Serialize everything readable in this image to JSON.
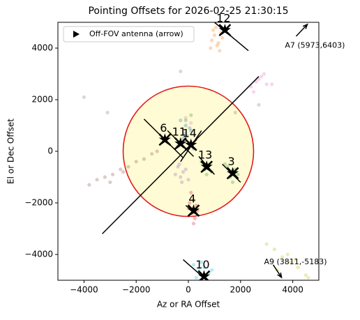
{
  "chart_data": {
    "type": "scatter",
    "title": "Pointing Offsets for 2026-02-25 21:30:15",
    "x_label": "Az or RA Offset",
    "y_label": "El or Dec Offset",
    "xlim": [
      -5000,
      5000
    ],
    "ylim": [
      -5000,
      5000
    ],
    "xticks": [
      {
        "value": -4000,
        "label": "−4000"
      },
      {
        "value": -2000,
        "label": "−2000"
      },
      0,
      2000,
      4000
    ],
    "yticks": [
      {
        "value": -4000,
        "label": "−4000"
      },
      {
        "value": -2000,
        "label": "−2000"
      },
      0,
      2000,
      4000
    ],
    "circle": {
      "center_x": 0,
      "center_y": 0,
      "radius": 2500,
      "fill": "#fffbd4",
      "edge": "#e31a1c"
    },
    "reference_line": {
      "x": [
        -3300,
        2700
      ],
      "y": [
        -3200,
        2900
      ]
    },
    "series": [
      {
        "color": "#ff7f0e",
        "x": [
          900,
          1000,
          1100,
          1200,
          950,
          1300,
          1050,
          1150,
          850,
          1250
        ],
        "y": [
          4300,
          4500,
          4100,
          3900,
          4700,
          4400,
          4800,
          4200,
          4000,
          4600
        ]
      },
      {
        "color": "#e377c2",
        "x": [
          2400,
          2600,
          2800,
          3000,
          2700,
          3200,
          2900,
          -100,
          100,
          2500
        ],
        "y": [
          2500,
          2700,
          2900,
          2600,
          2800,
          2600,
          3000,
          1300,
          1100,
          2300
        ]
      },
      {
        "color": "#8c564b",
        "x": [
          -3800,
          -3500,
          -3200,
          -2900,
          -2600,
          -2300,
          -2000,
          -1700,
          -1400,
          -1200,
          -3000,
          -2500
        ],
        "y": [
          -1300,
          -1100,
          -1000,
          -900,
          -700,
          -600,
          -400,
          -300,
          -100,
          0,
          -1200,
          -800
        ]
      },
      {
        "color": "#1f77b4",
        "x": [
          -300,
          -100,
          100,
          -200,
          0,
          -400,
          200,
          -150,
          50,
          -50
        ],
        "y": [
          1200,
          1000,
          800,
          500,
          300,
          200,
          100,
          700,
          900,
          600
        ]
      },
      {
        "color": "#9467bd",
        "x": [
          -400,
          -200,
          -300,
          -100,
          -500,
          -250,
          -350,
          0
        ],
        "y": [
          -600,
          -800,
          -1000,
          -700,
          -900,
          -1200,
          -500,
          -1100
        ]
      },
      {
        "color": "#2ca02c",
        "x": [
          500,
          600,
          800,
          900,
          700,
          1500,
          1600,
          1800,
          1900,
          1700,
          -100,
          100,
          1400
        ],
        "y": [
          -400,
          -700,
          -500,
          -800,
          -900,
          -600,
          -1000,
          -700,
          -900,
          -1200,
          1200,
          1400,
          -500
        ]
      },
      {
        "color": "#d62728",
        "x": [
          100,
          200,
          300,
          0,
          150,
          250,
          50,
          350,
          200
        ],
        "y": [
          -1600,
          -1900,
          -2100,
          -2200,
          -2400,
          -2600,
          -2000,
          -2300,
          -2800
        ]
      },
      {
        "color": "#17becf",
        "x": [
          200,
          400,
          600,
          800,
          300,
          500,
          700,
          900,
          450
        ],
        "y": [
          -4400,
          -4600,
          -4500,
          -4700,
          -4900,
          -4300,
          -4800,
          -4600,
          -5000
        ]
      },
      {
        "color": "#bcbd22",
        "x": [
          3000,
          3300,
          3600,
          3900,
          4200,
          4500,
          3400,
          3800,
          4100,
          4600
        ],
        "y": [
          -3600,
          -3800,
          -4100,
          -4300,
          -4500,
          -4800,
          -4600,
          -4000,
          -4200,
          -4900
        ]
      },
      {
        "color": "#7f7f7f",
        "x": [
          -4000,
          -3100,
          -300,
          2700,
          1800
        ],
        "y": [
          2100,
          1500,
          3100,
          1800,
          1500
        ]
      }
    ],
    "antennas": [
      {
        "label": "12",
        "x": 1400,
        "y": 4700,
        "line_x": [
          1000,
          2300
        ],
        "line_y": [
          5000,
          3900
        ]
      },
      {
        "label": "6",
        "x": -900,
        "y": 450,
        "line_x": [
          -1700,
          -200
        ],
        "line_y": [
          1250,
          -250
        ]
      },
      {
        "label": "11",
        "x": -300,
        "y": 300,
        "line_x": [
          -800,
          200
        ],
        "line_y": [
          800,
          -200
        ]
      },
      {
        "label": "14",
        "x": 100,
        "y": 250,
        "line_x": [
          -300,
          500
        ],
        "line_y": [
          -400,
          800
        ]
      },
      {
        "label": "13",
        "x": 700,
        "y": -600,
        "line_x": [
          400,
          1000
        ],
        "line_y": [
          -200,
          -900
        ]
      },
      {
        "label": "3",
        "x": 1700,
        "y": -850,
        "line_x": [
          1300,
          2000
        ],
        "line_y": [
          -500,
          -1200
        ]
      },
      {
        "label": "4",
        "x": 200,
        "y": -2300,
        "line_x": [
          -100,
          400
        ],
        "line_y": [
          -2100,
          -2500
        ]
      },
      {
        "label": "10",
        "x": 600,
        "y": -4850,
        "line_x": [
          -200,
          700
        ],
        "line_y": [
          -4200,
          -5000
        ]
      }
    ],
    "annotations": [
      {
        "text": "A7 (5973,6403)",
        "x": 3700,
        "y": 4100,
        "arrow_x": [
          4130,
          4560
        ],
        "arrow_y": [
          4460,
          4920
        ]
      },
      {
        "text": "A9 (3811,-5183)",
        "x": 2900,
        "y": -4300,
        "arrow_x": [
          3250,
          3570
        ],
        "arrow_y": [
          -4400,
          -4890
        ]
      }
    ],
    "legend": {
      "label": "Off-FOV antenna (arrow)",
      "loc": "upper left"
    }
  }
}
